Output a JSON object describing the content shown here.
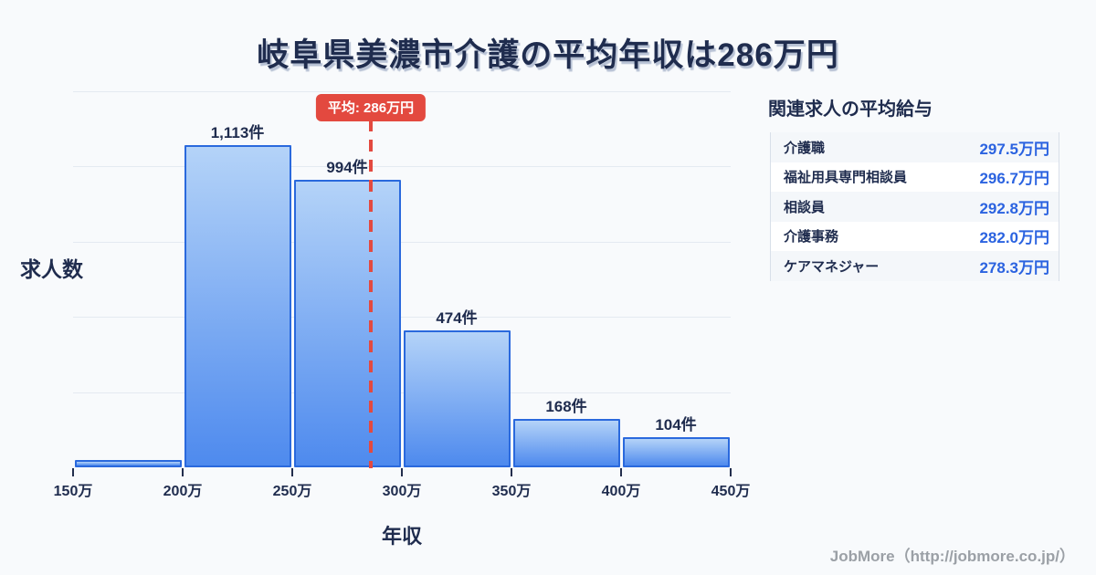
{
  "page": {
    "title": "岐阜県美濃市介護の平均年収は286万円"
  },
  "chart_data": {
    "type": "bar",
    "title": "岐阜県美濃市介護の平均年収は286万円",
    "xlabel": "年収",
    "ylabel": "求人数",
    "x_tick_labels": [
      "150万",
      "200万",
      "250万",
      "300万",
      "350万",
      "400万",
      "450万"
    ],
    "bin_edges_man_yen": [
      150,
      200,
      250,
      300,
      350,
      400,
      450
    ],
    "values": [
      25,
      1113,
      994,
      474,
      168,
      104
    ],
    "bar_labels": [
      "",
      "1,113件",
      "994件",
      "474件",
      "168件",
      "104件"
    ],
    "average_man_yen": 286,
    "average_label": "平均: 286万円",
    "ylim": [
      0,
      1300
    ],
    "grid": "horizontal",
    "legend": "none"
  },
  "panel": {
    "heading": "関連求人の平均給与",
    "rows": [
      {
        "label": "介護職",
        "value": "297.5万円"
      },
      {
        "label": "福祉用具専門相談員",
        "value": "296.7万円"
      },
      {
        "label": "相談員",
        "value": "292.8万円"
      },
      {
        "label": "介護事務",
        "value": "282.0万円"
      },
      {
        "label": "ケアマネジャー",
        "value": "278.3万円"
      }
    ]
  },
  "footer": {
    "credit": "JobMore（http://jobmore.co.jp/）"
  },
  "colors": {
    "navy": "#1f2c4e",
    "bar_border": "#2a69dd",
    "bar_top": "#b4d3f8",
    "bar_bottom": "#4e8aee",
    "red": "#e3493f",
    "value_blue": "#2b63e0",
    "grid": "#e4eaf1",
    "bg": "#f8fafc",
    "row_alt": "#f4f7fa",
    "panel_border": "#d8dfe9",
    "credit_gray": "#9ba0a6"
  }
}
